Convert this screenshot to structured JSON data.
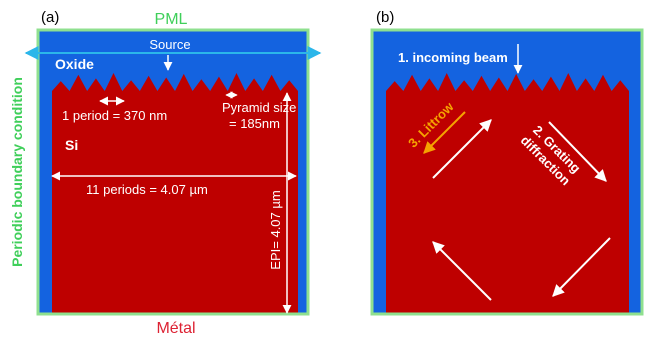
{
  "colors": {
    "pml": "#8fe08f",
    "oxide": "#1463e0",
    "silicon": "#be0000",
    "source_line": "#2bb6ea",
    "white": "#ffffff",
    "orange": "#f5a300",
    "green_text": "#3fcf5a",
    "red_text": "#dd2233"
  },
  "panel_a": {
    "tag": "(a)",
    "pml_label": "PML",
    "metal_label": "Métal",
    "side_label": "Periodic boundary condition",
    "source_label": "Source",
    "oxide_label": "Oxide",
    "si_label": "Si",
    "period_label": "1 period = 370 nm",
    "pyramid_label_line1": "Pyramid size",
    "pyramid_label_line2": "= 185nm",
    "periods_label": "11 periods = 4.07 µm",
    "epi_label": "EPI= 4.07 µm"
  },
  "panel_b": {
    "tag": "(b)",
    "incoming_label": "1. incoming beam",
    "littrow_label": "3. Littrow",
    "grating_line1": "2. Grating",
    "grating_line2": "diffraction"
  }
}
